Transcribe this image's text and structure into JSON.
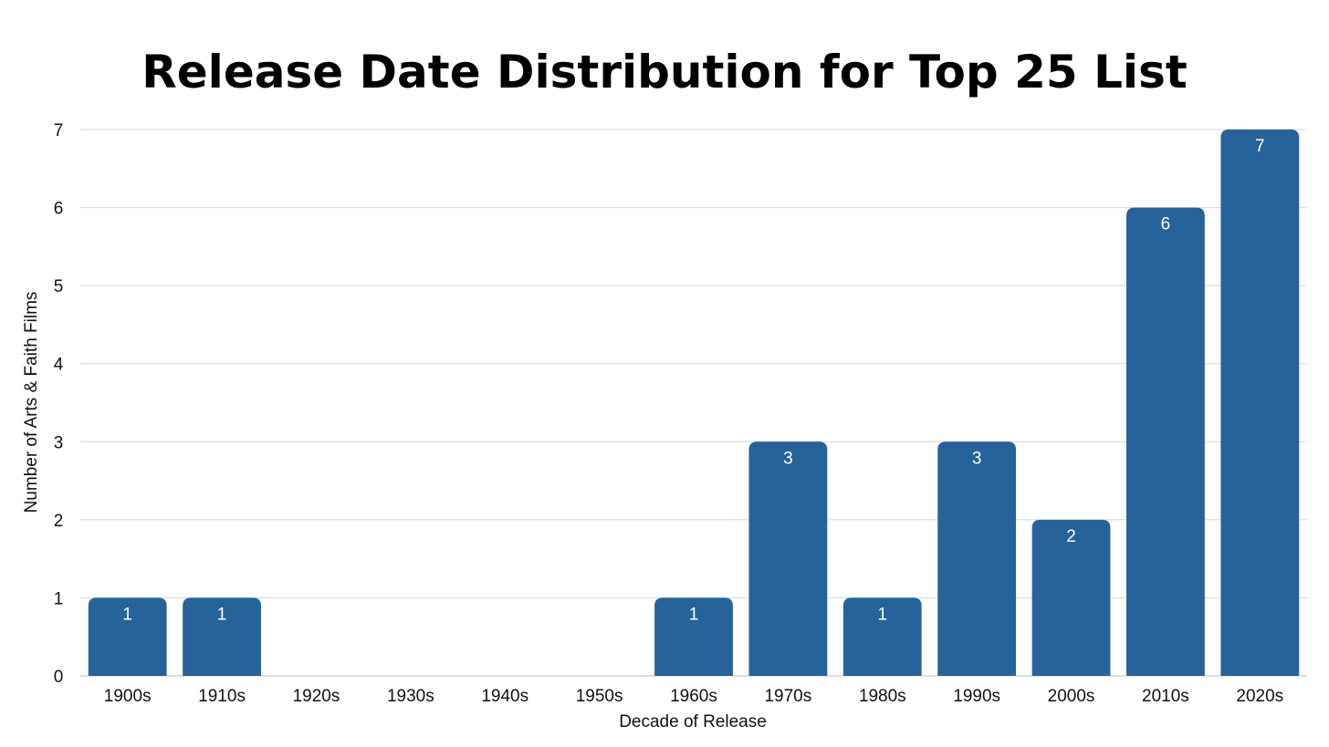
{
  "chart_data": {
    "type": "bar",
    "title": "Release Date Distribution for Top 25 List",
    "xlabel": "Decade of Release",
    "ylabel": "Number of Arts & Faith Films",
    "categories": [
      "1900s",
      "1910s",
      "1920s",
      "1930s",
      "1940s",
      "1950s",
      "1960s",
      "1970s",
      "1980s",
      "1990s",
      "2000s",
      "2010s",
      "2020s"
    ],
    "values": [
      1,
      1,
      0,
      0,
      0,
      0,
      1,
      3,
      1,
      3,
      2,
      6,
      7
    ],
    "ylim": [
      0,
      7
    ],
    "yticks": [
      0,
      1,
      2,
      3,
      4,
      5,
      6,
      7
    ],
    "grid": true,
    "legend": "none",
    "data_labels": true,
    "colors": {
      "bar": "#26639a",
      "grid": "#d4d4d4",
      "data_label": "#ffffff"
    }
  }
}
